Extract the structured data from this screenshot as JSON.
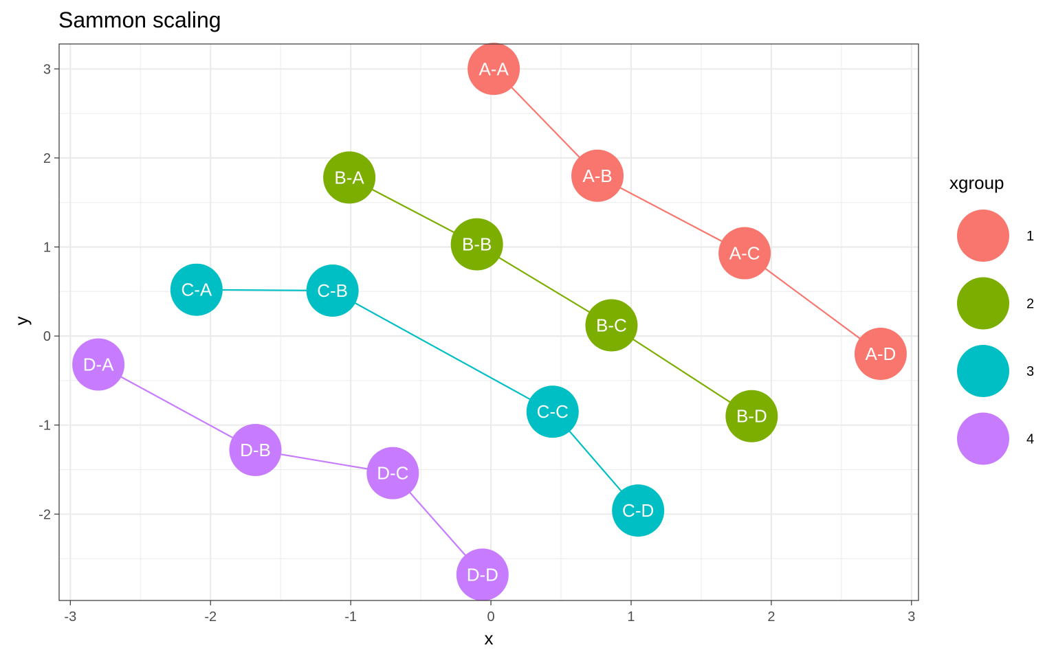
{
  "chart_data": {
    "type": "scatter",
    "title": "Sammon scaling",
    "xlabel": "x",
    "ylabel": "y",
    "xlim": [
      -3.08,
      3.05
    ],
    "ylim": [
      -2.97,
      3.28
    ],
    "x_ticks": [
      -3,
      -2,
      -1,
      0,
      1,
      2,
      3
    ],
    "y_ticks": [
      -2,
      -1,
      0,
      1,
      2,
      3
    ],
    "grid": true,
    "legend": {
      "title": "xgroup",
      "position": "right",
      "entries": [
        {
          "label": "1",
          "color": "#F8766D"
        },
        {
          "label": "2",
          "color": "#7CAE00"
        },
        {
          "label": "3",
          "color": "#00BFC4"
        },
        {
          "label": "4",
          "color": "#C77CFF"
        }
      ]
    },
    "series": [
      {
        "group": "1",
        "color": "#F8766D",
        "points": [
          {
            "label": "A-A",
            "x": 0.02,
            "y": 3.0
          },
          {
            "label": "A-B",
            "x": 0.76,
            "y": 1.8
          },
          {
            "label": "A-C",
            "x": 1.81,
            "y": 0.93
          },
          {
            "label": "A-D",
            "x": 2.78,
            "y": -0.2
          }
        ]
      },
      {
        "group": "2",
        "color": "#7CAE00",
        "points": [
          {
            "label": "B-A",
            "x": -1.01,
            "y": 1.78
          },
          {
            "label": "B-B",
            "x": -0.1,
            "y": 1.03
          },
          {
            "label": "B-C",
            "x": 0.86,
            "y": 0.12
          },
          {
            "label": "B-D",
            "x": 1.86,
            "y": -0.9
          }
        ]
      },
      {
        "group": "3",
        "color": "#00BFC4",
        "points": [
          {
            "label": "C-A",
            "x": -2.1,
            "y": 0.52
          },
          {
            "label": "C-B",
            "x": -1.13,
            "y": 0.51
          },
          {
            "label": "C-C",
            "x": 0.44,
            "y": -0.85
          },
          {
            "label": "C-D",
            "x": 1.05,
            "y": -1.96
          }
        ]
      },
      {
        "group": "4",
        "color": "#C77CFF",
        "points": [
          {
            "label": "D-A",
            "x": -2.8,
            "y": -0.32
          },
          {
            "label": "D-B",
            "x": -1.68,
            "y": -1.28
          },
          {
            "label": "D-C",
            "x": -0.7,
            "y": -1.54
          },
          {
            "label": "D-D",
            "x": -0.06,
            "y": -2.68
          }
        ]
      }
    ]
  }
}
